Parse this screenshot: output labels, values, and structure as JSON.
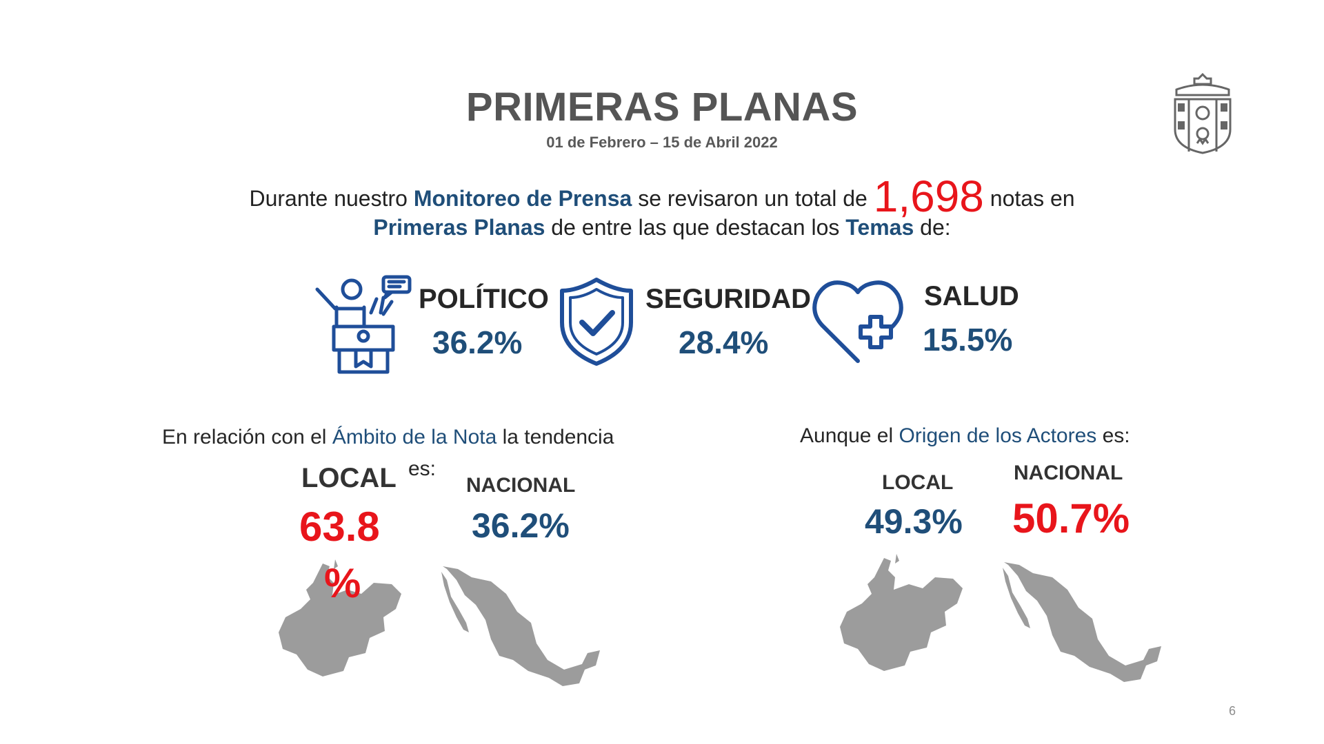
{
  "slide": {
    "title": "PRIMERAS PLANAS",
    "date_range": "01 de Febrero – 15 de Abril 2022",
    "page_number": "6"
  },
  "intro": {
    "line1_prefix": "Durante nuestro ",
    "line1_highlight": "Monitoreo de Prensa",
    "line1_middle": " se revisaron un total de ",
    "total_notes": "1,698",
    "line1_suffix": " notas en",
    "line2_highlight": "Primeras Planas",
    "line2_middle": " de entre las que destacan los ",
    "line2_highlight2": "Temas",
    "line2_suffix": " de:"
  },
  "themes": [
    {
      "label": "POLÍTICO",
      "value": "36.2%",
      "icon": "politician-podium-icon"
    },
    {
      "label": "SEGURIDAD",
      "value": "28.4%",
      "icon": "shield-check-icon"
    },
    {
      "label": "SALUD",
      "value": "15.5%",
      "icon": "heart-plus-icon"
    }
  ],
  "ambito": {
    "text_prefix": "En relación con el ",
    "text_highlight": "Ámbito de la Nota",
    "text_suffix": " la tendencia",
    "text_es": "es:",
    "local_label": "LOCAL",
    "local_value_line1": "63.8",
    "local_value_line2": "%",
    "nacional_label": "NACIONAL",
    "nacional_value": "36.2%"
  },
  "origen": {
    "text_prefix": "Aunque el ",
    "text_highlight": "Origen de los Actores",
    "text_suffix": " es:",
    "local_label": "LOCAL",
    "local_value": "49.3%",
    "nacional_label": "NACIONAL",
    "nacional_value": "50.7%"
  },
  "colors": {
    "accent_blue": "#1f4e79",
    "icon_blue": "#1f4e99",
    "highlight_red": "#e8151b",
    "map_gray": "#9c9c9c"
  }
}
